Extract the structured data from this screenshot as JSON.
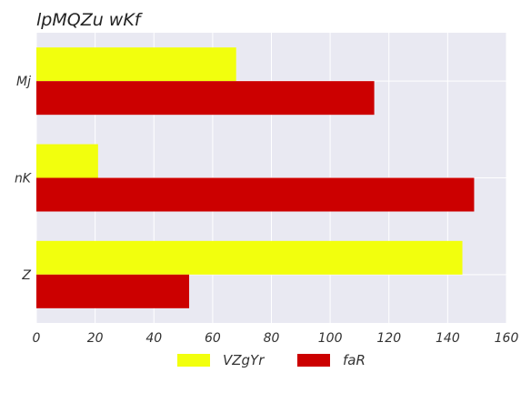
{
  "chart_data": {
    "type": "bar",
    "orientation": "horizontal",
    "title": "lpMQZu wKf",
    "categories": [
      "Mj",
      "nK",
      "Z"
    ],
    "series": [
      {
        "name": "VZgYr",
        "values": [
          68,
          21,
          145
        ],
        "color": "#f2ff0d"
      },
      {
        "name": "faR",
        "values": [
          115,
          149,
          52
        ],
        "color": "#cc0000"
      }
    ],
    "xlim": [
      0,
      160
    ],
    "xticks": [
      0,
      20,
      40,
      60,
      80,
      100,
      120,
      140,
      160
    ],
    "xlabel": "",
    "ylabel": "",
    "grid": true,
    "legend_position": "bottom-center",
    "plot_background": "#e9e9f2",
    "grid_color": "#ffffff"
  }
}
